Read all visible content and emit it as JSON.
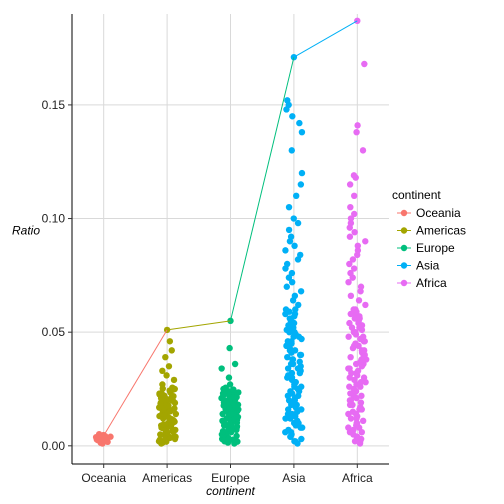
{
  "chart_data": {
    "type": "scatter",
    "xlabel": "continent",
    "ylabel": "Ratio",
    "ylim": [
      -0.008,
      0.19
    ],
    "yticks": [
      0.0,
      0.05,
      0.1,
      0.15
    ],
    "ytick_labels": [
      "0.00",
      "0.05",
      "0.10",
      "0.15"
    ],
    "categories": [
      "Oceania",
      "Americas",
      "Europe",
      "Asia",
      "Africa"
    ],
    "grid": true,
    "legend": {
      "title": "continent",
      "position": "right",
      "entries": [
        "Oceania",
        "Americas",
        "Europe",
        "Asia",
        "Africa"
      ]
    },
    "series": [
      {
        "name": "Oceania",
        "color": "#F8766D",
        "max": 0.0045,
        "points": [
          0.002,
          0.0025,
          0.0028,
          0.003,
          0.0033,
          0.0035,
          0.0038,
          0.004,
          0.0042,
          0.0045
        ]
      },
      {
        "name": "Americas",
        "color": "#A3A500",
        "max": 0.051,
        "points": [
          0.002,
          0.003,
          0.004,
          0.005,
          0.006,
          0.007,
          0.008,
          0.009,
          0.01,
          0.011,
          0.012,
          0.013,
          0.014,
          0.015,
          0.016,
          0.017,
          0.018,
          0.019,
          0.02,
          0.021,
          0.022,
          0.023,
          0.025,
          0.027,
          0.029,
          0.031,
          0.033,
          0.035,
          0.039,
          0.042,
          0.046,
          0.051
        ]
      },
      {
        "name": "Europe",
        "color": "#00BF7D",
        "max": 0.055,
        "points": [
          0.002,
          0.003,
          0.004,
          0.005,
          0.006,
          0.007,
          0.008,
          0.009,
          0.01,
          0.011,
          0.012,
          0.013,
          0.014,
          0.015,
          0.016,
          0.017,
          0.018,
          0.019,
          0.02,
          0.021,
          0.022,
          0.023,
          0.024,
          0.025,
          0.027,
          0.03,
          0.034,
          0.036,
          0.043,
          0.055
        ]
      },
      {
        "name": "Asia",
        "color": "#00B0F6",
        "max": 0.171,
        "points": [
          0.002,
          0.004,
          0.006,
          0.008,
          0.01,
          0.012,
          0.014,
          0.016,
          0.018,
          0.02,
          0.022,
          0.024,
          0.026,
          0.028,
          0.03,
          0.032,
          0.034,
          0.036,
          0.038,
          0.04,
          0.042,
          0.044,
          0.046,
          0.048,
          0.05,
          0.052,
          0.054,
          0.056,
          0.058,
          0.06,
          0.062,
          0.064,
          0.066,
          0.068,
          0.07,
          0.072,
          0.074,
          0.076,
          0.078,
          0.08,
          0.082,
          0.084,
          0.086,
          0.088,
          0.09,
          0.092,
          0.095,
          0.098,
          0.1,
          0.105,
          0.11,
          0.115,
          0.12,
          0.13,
          0.138,
          0.142,
          0.145,
          0.148,
          0.15,
          0.152,
          0.171
        ]
      },
      {
        "name": "Africa",
        "color": "#E76BF3",
        "max": 0.187,
        "points": [
          0.002,
          0.004,
          0.006,
          0.008,
          0.01,
          0.012,
          0.014,
          0.016,
          0.018,
          0.02,
          0.022,
          0.024,
          0.026,
          0.028,
          0.03,
          0.032,
          0.034,
          0.036,
          0.038,
          0.04,
          0.042,
          0.044,
          0.046,
          0.048,
          0.05,
          0.052,
          0.054,
          0.056,
          0.058,
          0.06,
          0.062,
          0.064,
          0.066,
          0.068,
          0.07,
          0.072,
          0.074,
          0.076,
          0.078,
          0.08,
          0.082,
          0.084,
          0.086,
          0.088,
          0.09,
          0.092,
          0.094,
          0.096,
          0.098,
          0.1,
          0.102,
          0.105,
          0.11,
          0.115,
          0.118,
          0.119,
          0.13,
          0.138,
          0.141,
          0.168,
          0.187
        ]
      }
    ]
  }
}
